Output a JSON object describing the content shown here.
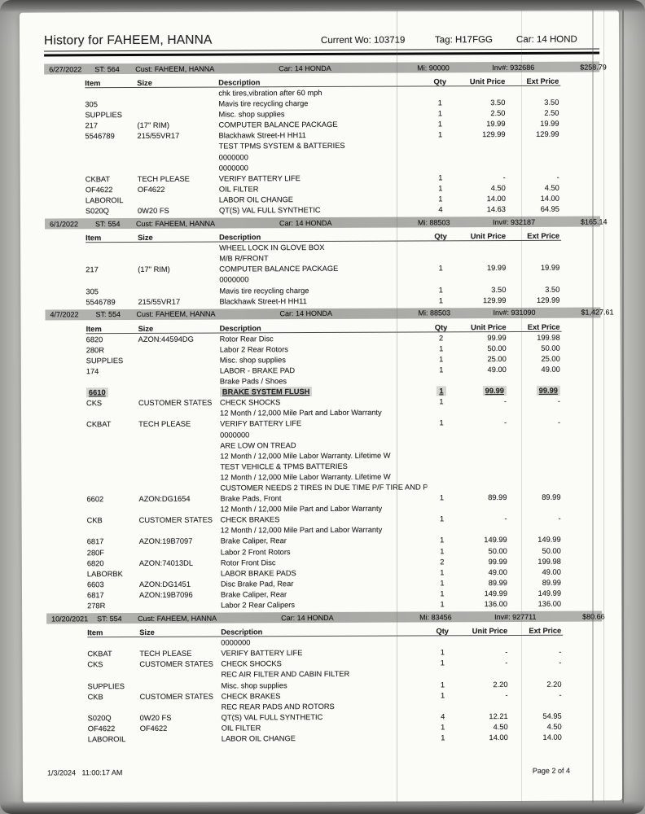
{
  "header": {
    "title": "History for FAHEEM, HANNA",
    "current_wo": "Current Wo: 103719",
    "tag": "Tag: H17FGG",
    "car": "Car: 14 HOND"
  },
  "columns": [
    "Item",
    "Size",
    "Description",
    "Qty",
    "Unit Price",
    "Ext Price"
  ],
  "sections": [
    {
      "date": "6/27/2022",
      "st": "ST: 564",
      "cust": "Cust: FAHEEM, HANNA",
      "car": "Car: 14 HONDA",
      "mi": "Mi: 90000",
      "inv": "Inv#: 932686",
      "total": "$258.79",
      "highlight_row": -1,
      "rows": [
        [
          "",
          "",
          "chk tires,vibration after 60 mph",
          "",
          "",
          ""
        ],
        [
          "305",
          "",
          "Mavis tire recycling charge",
          "1",
          "3.50",
          "3.50"
        ],
        [
          "SUPPLIES",
          "",
          "Misc. shop supplies",
          "1",
          "2.50",
          "2.50"
        ],
        [
          "217",
          "(17\" RIM)",
          "COMPUTER BALANCE PACKAGE",
          "1",
          "19.99",
          "19.99"
        ],
        [
          "5546789",
          "215/55VR17",
          "Blackhawk Street-H HH11",
          "1",
          "129.99",
          "129.99"
        ],
        [
          "",
          "",
          "TEST TPMS SYSTEM & BATTERIES",
          "",
          "",
          ""
        ],
        [
          "",
          "",
          "0000000",
          "",
          "",
          ""
        ],
        [
          "",
          "",
          "0000000",
          "",
          "",
          ""
        ],
        [
          "CKBAT",
          "TECH PLEASE",
          "VERIFY BATTERY LIFE",
          "1",
          "-",
          "-"
        ],
        [
          "OF4622",
          "OF4622",
          "OIL FILTER",
          "1",
          "4.50",
          "4.50"
        ],
        [
          "LABOROIL",
          "",
          "LABOR OIL CHANGE",
          "1",
          "14.00",
          "14.00"
        ],
        [
          "S020Q",
          "0W20 FS",
          "QT(S) VAL FULL SYNTHETIC",
          "4",
          "14.63",
          "64.95"
        ]
      ]
    },
    {
      "date": "6/1/2022",
      "st": "ST: 554",
      "cust": "Cust: FAHEEM, HANNA",
      "car": "Car: 14 HONDA",
      "mi": "Mi: 88503",
      "inv": "Inv#: 932187",
      "total": "$165.14",
      "highlight_row": -1,
      "rows": [
        [
          "",
          "",
          "WHEEL LOCK IN GLOVE BOX",
          "",
          "",
          ""
        ],
        [
          "",
          "",
          "M/B R/FRONT",
          "",
          "",
          ""
        ],
        [
          "217",
          "(17\" RIM)",
          "COMPUTER BALANCE PACKAGE",
          "1",
          "19.99",
          "19.99"
        ],
        [
          "",
          "",
          "0000000",
          "",
          "",
          ""
        ],
        [
          "305",
          "",
          "Mavis tire recycling charge",
          "1",
          "3.50",
          "3.50"
        ],
        [
          "5546789",
          "215/55VR17",
          "Blackhawk Street-H HH11",
          "1",
          "129.99",
          "129.99"
        ]
      ]
    },
    {
      "date": "4/7/2022",
      "st": "ST: 554",
      "cust": "Cust: FAHEEM, HANNA",
      "car": "Car: 14 HONDA",
      "mi": "Mi: 88503",
      "inv": "Inv#: 931090",
      "total": "$1,427.61",
      "highlight_row": 5,
      "rows": [
        [
          "6820",
          "AZON:44594DG",
          "Rotor Rear Disc",
          "2",
          "99.99",
          "199.98"
        ],
        [
          "280R",
          "",
          "Labor 2 Rear Rotors",
          "1",
          "50.00",
          "50.00"
        ],
        [
          "SUPPLIES",
          "",
          "Misc. shop supplies",
          "1",
          "25.00",
          "25.00"
        ],
        [
          "174",
          "",
          "LABOR - BRAKE PAD",
          "1",
          "49.00",
          "49.00"
        ],
        [
          "",
          "",
          "Brake Pads / Shoes",
          "",
          "",
          ""
        ],
        [
          "6610",
          "",
          "BRAKE SYSTEM FLUSH",
          "1",
          "99.99",
          "99.99"
        ],
        [
          "CKS",
          "CUSTOMER STATES",
          "CHECK SHOCKS",
          "1",
          "-",
          "-"
        ],
        [
          "",
          "",
          "12 Month / 12,000 Mile Part and Labor Warranty",
          "",
          "",
          ""
        ],
        [
          "CKBAT",
          "TECH PLEASE",
          "VERIFY BATTERY LIFE",
          "1",
          "-",
          "-"
        ],
        [
          "",
          "",
          "0000000",
          "",
          "",
          ""
        ],
        [
          "",
          "",
          "ARE LOW ON TREAD",
          "",
          "",
          ""
        ],
        [
          "",
          "",
          "12 Month / 12,000 Mile Labor Warranty.  Lifetime W",
          "",
          "",
          ""
        ],
        [
          "",
          "",
          "TEST VEHICLE & TPMS BATTERIES",
          "",
          "",
          ""
        ],
        [
          "",
          "",
          "12 Month / 12,000 Mile Labor Warranty.  Lifetime W",
          "",
          "",
          ""
        ],
        [
          "",
          "",
          "CUSTOMER NEEDS 2 TIRES IN DUE TIME P/F TIRE AND P/",
          "",
          "",
          ""
        ],
        [
          "6602",
          "AZON:DG1654",
          "Brake Pads, Front",
          "1",
          "89.99",
          "89.99"
        ],
        [
          "",
          "",
          "12 Month / 12,000 Mile Part and Labor Warranty",
          "",
          "",
          ""
        ],
        [
          "CKB",
          "CUSTOMER STATES",
          "CHECK BRAKES",
          "1",
          "-",
          "-"
        ],
        [
          "",
          "",
          "12 Month / 12,000 Mile Part and Labor Warranty",
          "",
          "",
          ""
        ],
        [
          "6817",
          "AZON:19B7097",
          "Brake Caliper, Rear",
          "1",
          "149.99",
          "149.99"
        ],
        [
          "280F",
          "",
          "Labor 2 Front Rotors",
          "1",
          "50.00",
          "50.00"
        ],
        [
          "6820",
          "AZON:74013DL",
          "Rotor Front Disc",
          "2",
          "99.99",
          "199.98"
        ],
        [
          "LABORBK",
          "",
          "LABOR BRAKE PADS",
          "1",
          "49.00",
          "49.00"
        ],
        [
          "6603",
          "AZON:DG1451",
          "Disc Brake Pad, Rear",
          "1",
          "89.99",
          "89.99"
        ],
        [
          "6817",
          "AZON:19B7096",
          "Brake Caliper, Rear",
          "1",
          "149.99",
          "149.99"
        ],
        [
          "278R",
          "",
          "Labor 2 Rear Calipers",
          "1",
          "136.00",
          "136.00"
        ]
      ]
    },
    {
      "date": "10/20/2021",
      "st": "ST: 554",
      "cust": "Cust: FAHEEM, HANNA",
      "car": "Car: 14 HONDA",
      "mi": "Mi: 83456",
      "inv": "Inv#: 927711",
      "total": "$80.66",
      "highlight_row": -1,
      "rows": [
        [
          "",
          "",
          "0000000",
          "",
          "",
          ""
        ],
        [
          "CKBAT",
          "TECH PLEASE",
          "VERIFY BATTERY LIFE",
          "1",
          "-",
          "-"
        ],
        [
          "CKS",
          "CUSTOMER STATES",
          "CHECK SHOCKS",
          "1",
          "-",
          "-"
        ],
        [
          "",
          "",
          "REC AIR FILTER AND CABIN FILTER",
          "",
          "",
          ""
        ],
        [
          "SUPPLIES",
          "",
          "Misc. shop supplies",
          "1",
          "2.20",
          "2.20"
        ],
        [
          "CKB",
          "CUSTOMER STATES",
          "CHECK BRAKES",
          "1",
          "-",
          "-"
        ],
        [
          "",
          "",
          "REC REAR PADS AND ROTORS",
          "",
          "",
          ""
        ],
        [
          "S020Q",
          "0W20 FS",
          "QT(S) VAL FULL SYNTHETIC",
          "4",
          "12.21",
          "54.95"
        ],
        [
          "OF4622",
          "OF4622",
          "OIL FILTER",
          "1",
          "4.50",
          "4.50"
        ],
        [
          "LABOROIL",
          "",
          "LABOR OIL CHANGE",
          "1",
          "14.00",
          "14.00"
        ]
      ]
    }
  ],
  "footer": {
    "date": "1/3/2024",
    "time": "11:00:17 AM",
    "page": "Page 2 of 4"
  }
}
